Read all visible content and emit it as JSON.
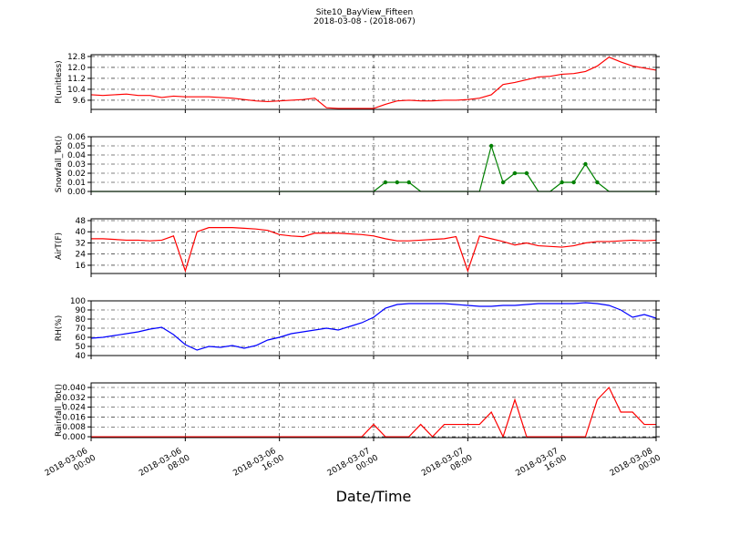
{
  "chart_data": {
    "type": "line",
    "title": "Site10_BayView_Fifteen",
    "subtitle": "2018-03-08 - (2018-067)",
    "xlabel": "Date/Time",
    "grid": true,
    "x": [
      "2018-03-06 00:00",
      "2018-03-06 01:00",
      "2018-03-06 02:00",
      "2018-03-06 03:00",
      "2018-03-06 04:00",
      "2018-03-06 05:00",
      "2018-03-06 06:00",
      "2018-03-06 07:00",
      "2018-03-06 08:00",
      "2018-03-06 09:00",
      "2018-03-06 10:00",
      "2018-03-06 11:00",
      "2018-03-06 12:00",
      "2018-03-06 13:00",
      "2018-03-06 14:00",
      "2018-03-06 15:00",
      "2018-03-06 16:00",
      "2018-03-06 17:00",
      "2018-03-06 18:00",
      "2018-03-06 19:00",
      "2018-03-06 20:00",
      "2018-03-06 21:00",
      "2018-03-06 22:00",
      "2018-03-06 23:00",
      "2018-03-07 00:00",
      "2018-03-07 01:00",
      "2018-03-07 02:00",
      "2018-03-07 03:00",
      "2018-03-07 04:00",
      "2018-03-07 05:00",
      "2018-03-07 06:00",
      "2018-03-07 07:00",
      "2018-03-07 08:00",
      "2018-03-07 09:00",
      "2018-03-07 10:00",
      "2018-03-07 11:00",
      "2018-03-07 12:00",
      "2018-03-07 13:00",
      "2018-03-07 14:00",
      "2018-03-07 15:00",
      "2018-03-07 16:00",
      "2018-03-07 17:00",
      "2018-03-07 18:00",
      "2018-03-07 19:00",
      "2018-03-07 20:00",
      "2018-03-07 21:00",
      "2018-03-07 22:00",
      "2018-03-07 23:00",
      "2018-03-08 00:00"
    ],
    "xlim": [
      "2018-03-06 00:00",
      "2018-03-08 00:00"
    ],
    "xticks": [
      {
        "value": "2018-03-06 00:00",
        "label": [
          "2018-03-06",
          "00:00"
        ]
      },
      {
        "value": "2018-03-06 08:00",
        "label": [
          "2018-03-06",
          "08:00"
        ]
      },
      {
        "value": "2018-03-06 16:00",
        "label": [
          "2018-03-06",
          "16:00"
        ]
      },
      {
        "value": "2018-03-07 00:00",
        "label": [
          "2018-03-07",
          "00:00"
        ]
      },
      {
        "value": "2018-03-07 08:00",
        "label": [
          "2018-03-07",
          "08:00"
        ]
      },
      {
        "value": "2018-03-07 16:00",
        "label": [
          "2018-03-07",
          "16:00"
        ]
      },
      {
        "value": "2018-03-08 00:00",
        "label": [
          "2018-03-08",
          "00:00"
        ]
      }
    ],
    "panels": [
      {
        "ylabel": "P(unitless)",
        "ylim": [
          8.93,
          12.93
        ],
        "yticks": [
          9.6,
          10.4,
          11.2,
          {
            "value": 12.0,
            "label": "12.0"
          },
          12.8
        ],
        "series": [
          {
            "color": "#ff0000",
            "markers": false,
            "values": [
              10.0,
              9.95,
              10.0,
              10.05,
              9.95,
              9.95,
              9.8,
              9.9,
              9.85,
              9.85,
              9.85,
              9.8,
              9.75,
              9.65,
              9.55,
              9.5,
              9.55,
              9.6,
              9.65,
              9.75,
              9.05,
              9.0,
              9.0,
              9.0,
              9.0,
              9.3,
              9.55,
              9.6,
              9.55,
              9.55,
              9.6,
              9.6,
              9.65,
              9.75,
              10.0,
              10.75,
              10.9,
              11.1,
              11.3,
              11.35,
              11.5,
              11.55,
              11.7,
              12.1,
              12.75,
              12.4,
              12.1,
              11.95,
              11.8
            ]
          }
        ]
      },
      {
        "ylabel": "Snowfall_Tot()",
        "ylim": [
          0,
          0.06
        ],
        "yticks": [
          {
            "value": 0,
            "label": "0.00"
          },
          0.01,
          0.02,
          0.03,
          0.04,
          0.05,
          0.06
        ],
        "series": [
          {
            "color": "#008000",
            "markers": true,
            "values": [
              0,
              0,
              0,
              0,
              0,
              0,
              0,
              0,
              0,
              0,
              0,
              0,
              0,
              0,
              0,
              0,
              0,
              0,
              0,
              0,
              0,
              0,
              0,
              0,
              0,
              0.01,
              0.01,
              0.01,
              0,
              0,
              0,
              0,
              0,
              0,
              0.05,
              0.01,
              0.02,
              0.02,
              0,
              0,
              0.01,
              0.01,
              0.03,
              0.01,
              0,
              0,
              0,
              0,
              0
            ]
          }
        ]
      },
      {
        "ylabel": "AirT(F)",
        "ylim": [
          10.1,
          49.3
        ],
        "yticks": [
          16,
          24,
          32,
          40,
          48
        ],
        "series": [
          {
            "color": "#ff0000",
            "markers": false,
            "values": [
              35,
              35,
              34.5,
              34,
              34,
              33.5,
              34,
              37,
              12,
              40,
              43,
              43,
              43,
              42.5,
              42,
              41,
              38,
              37,
              36.5,
              39,
              39,
              39,
              38.5,
              38,
              37,
              35,
              33.5,
              33.5,
              34,
              34.5,
              35,
              36.5,
              12,
              37,
              35,
              33,
              30.5,
              32,
              30,
              29.5,
              29,
              30,
              32,
              33,
              33,
              33.5,
              34,
              33.5,
              34
            ]
          }
        ]
      },
      {
        "ylabel": "RH(%)",
        "ylim": [
          40,
          100
        ],
        "yticks": [
          40,
          50,
          60,
          70,
          80,
          90,
          100
        ],
        "series": [
          {
            "color": "#0000ff",
            "markers": false,
            "values": [
              59,
              60,
              62,
              64,
              66,
              69,
              71,
              63,
              52,
              46,
              50,
              49,
              51,
              48,
              51,
              57,
              60,
              64,
              66,
              68,
              70,
              68,
              72,
              76,
              82,
              92,
              96,
              97,
              97,
              97,
              97,
              96,
              95,
              94,
              94,
              95,
              95,
              96,
              97,
              97,
              97,
              97,
              98,
              97,
              95,
              90,
              82,
              85,
              81
            ]
          }
        ]
      },
      {
        "ylabel": "Rainfall_Tot()",
        "ylim": [
          -0.0007,
          0.0437
        ],
        "yticks": [
          {
            "value": 0,
            "label": "0.000"
          },
          0.008,
          0.016,
          0.024,
          0.032,
          {
            "value": 0.04,
            "label": "0.040"
          }
        ],
        "series": [
          {
            "color": "#ff0000",
            "markers": false,
            "values": [
              0,
              0,
              0,
              0,
              0,
              0,
              0,
              0,
              0,
              0,
              0,
              0,
              0,
              0,
              0,
              0,
              0,
              0,
              0,
              0,
              0,
              0,
              0,
              0,
              0.01,
              0,
              0,
              0,
              0.01,
              0,
              0.01,
              0.01,
              0.01,
              0.01,
              0.02,
              0,
              0.03,
              0,
              0,
              0,
              0,
              0,
              0,
              0.03,
              0.04,
              0.02,
              0.02,
              0.01,
              0.01
            ]
          }
        ]
      }
    ]
  }
}
